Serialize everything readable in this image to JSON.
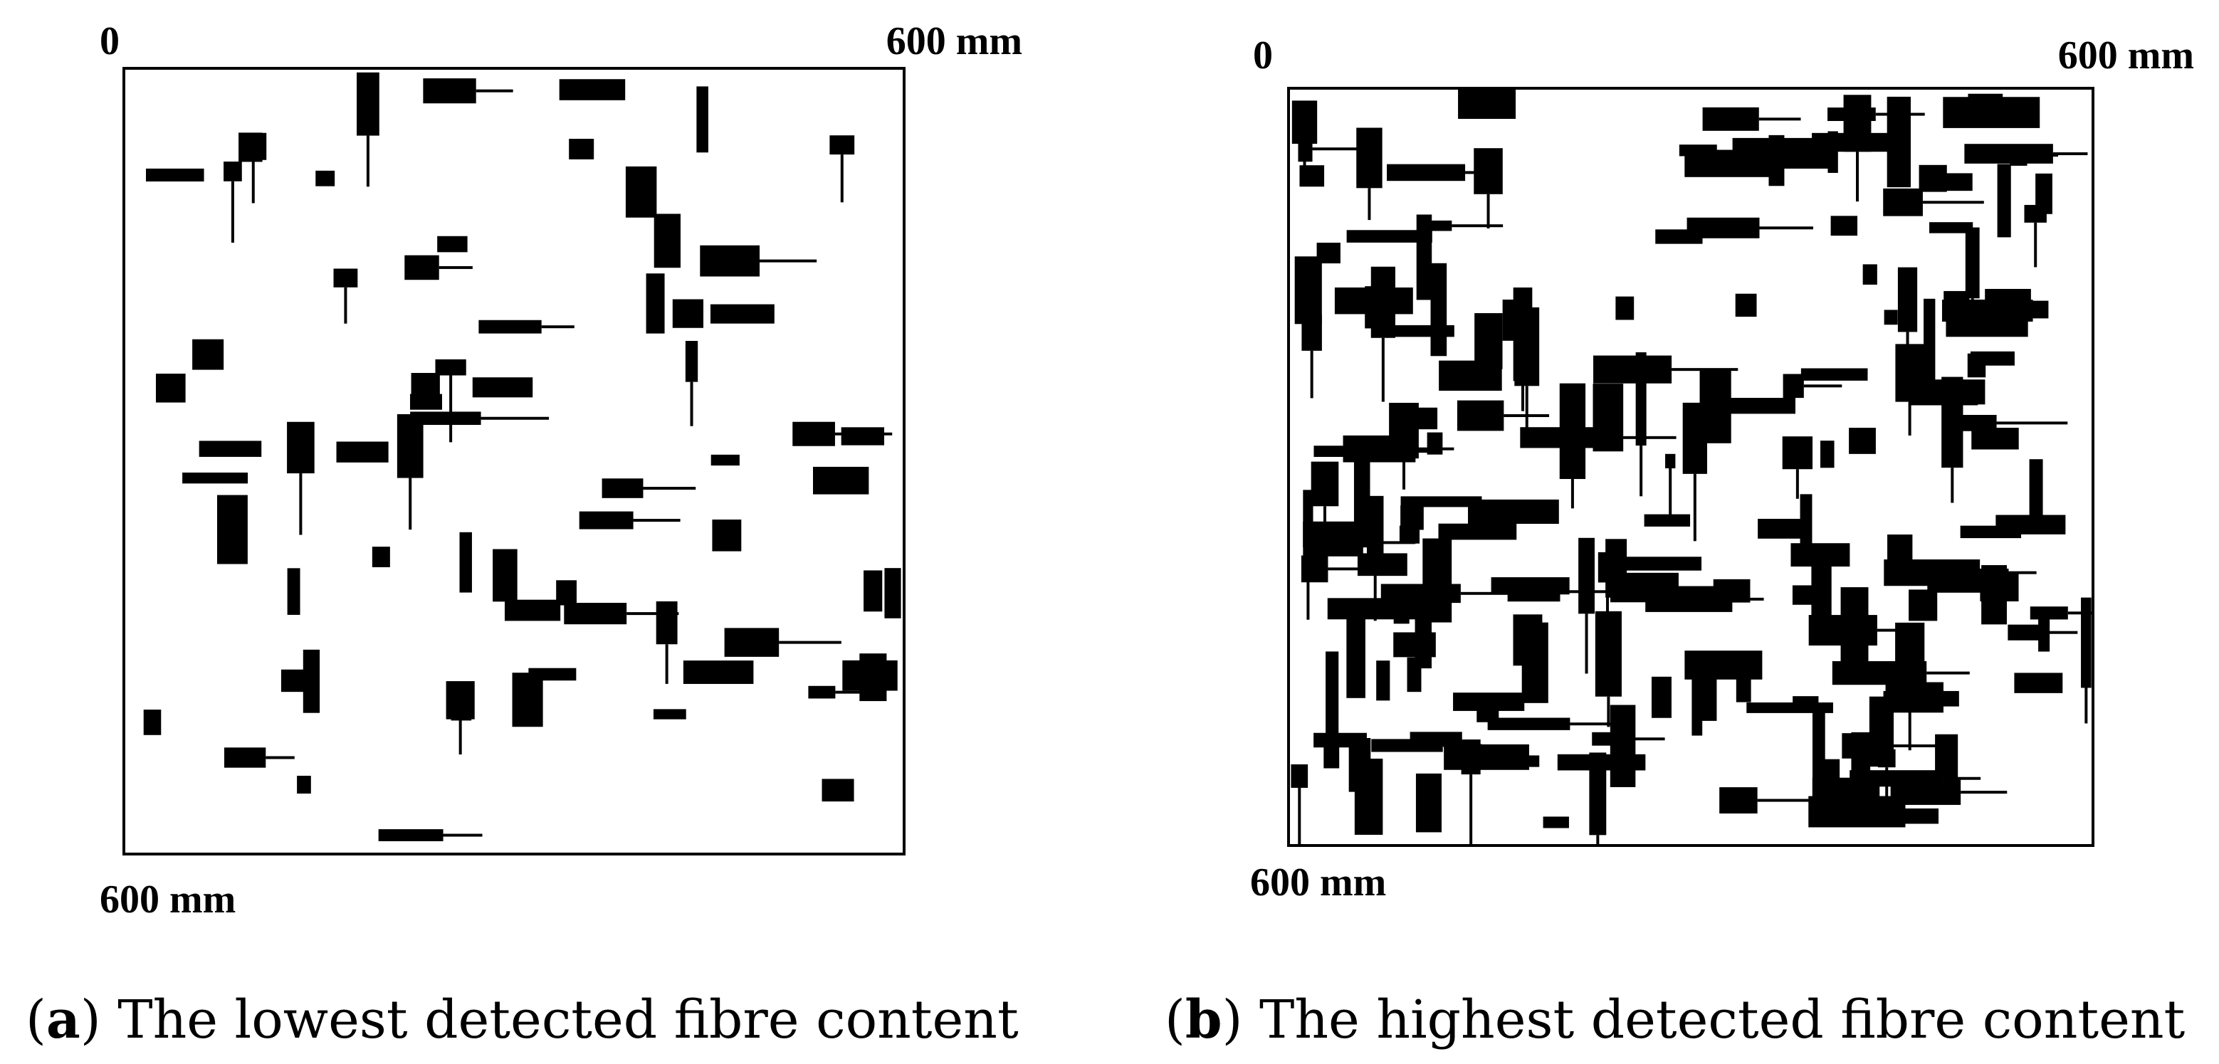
{
  "panels": [
    {
      "origin": "0",
      "top_right": "600 mm",
      "bottom_left": "600 mm",
      "caption_open": "(",
      "label": "a",
      "caption": ") The lowest detected fibre content"
    },
    {
      "origin": "0",
      "top_right": "600 mm",
      "bottom_left": "600 mm",
      "caption_open": "(",
      "label": "b",
      "caption": ") The highest detected fibre content"
    }
  ]
}
